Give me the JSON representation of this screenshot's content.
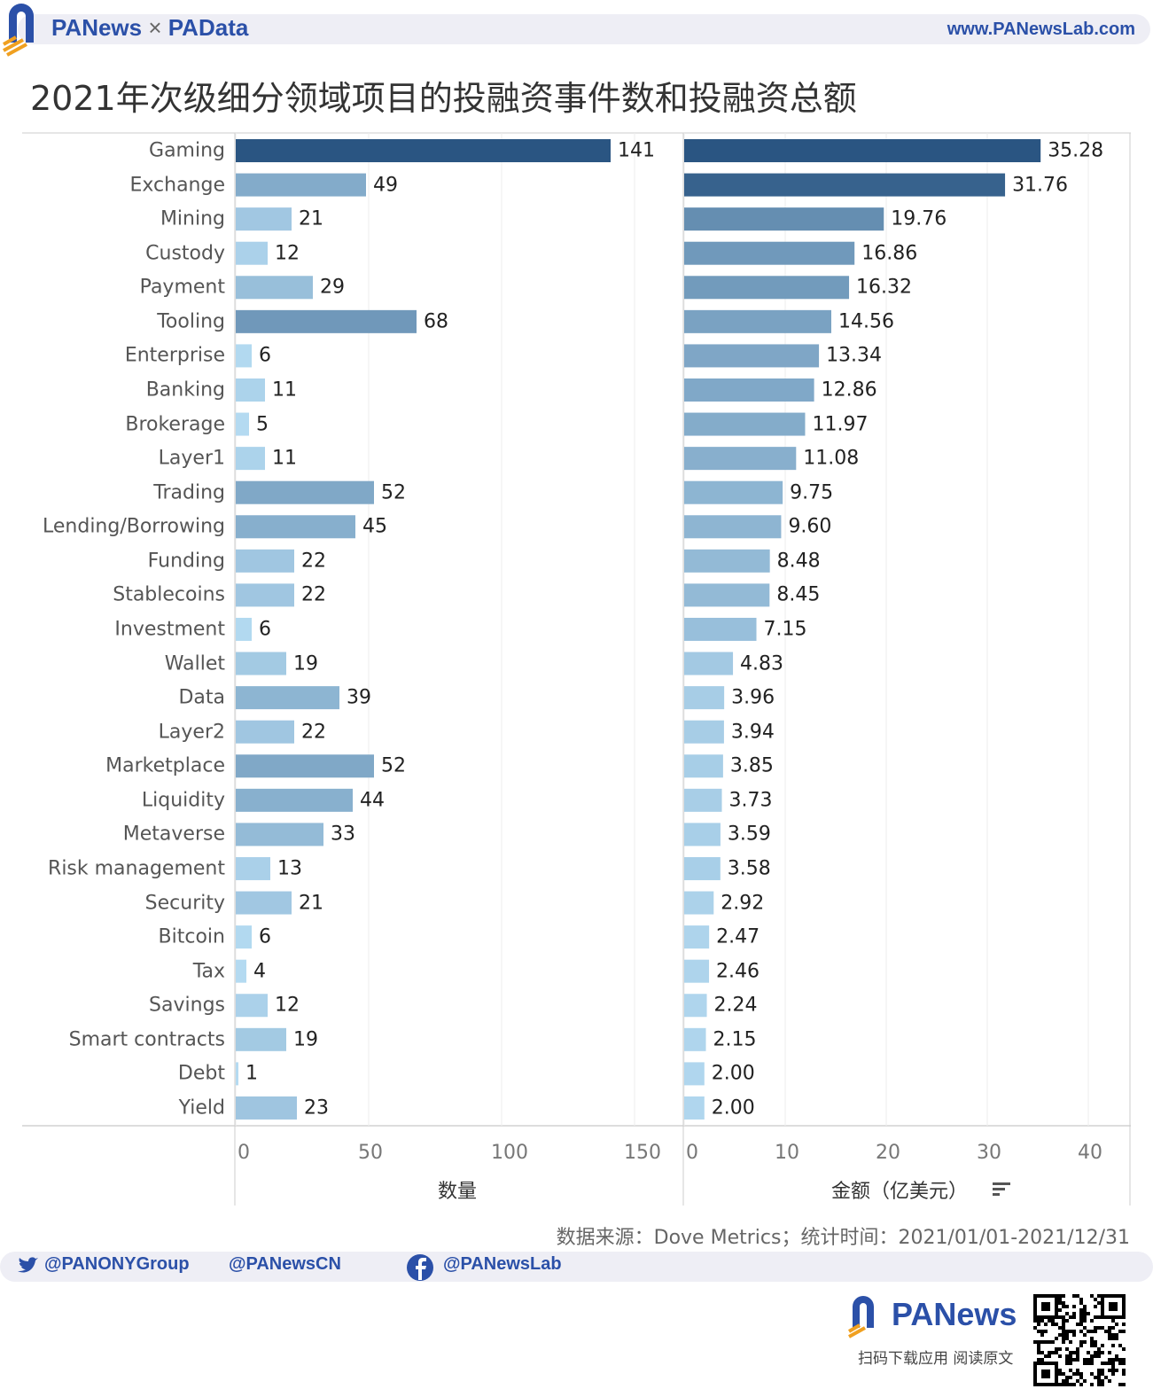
{
  "header": {
    "brand": "PANews",
    "times": "×",
    "brand2": "PAData",
    "website": "www.PANewsLab.com"
  },
  "title": "2021年次级细分领域项目的投融资事件数和投融资总额",
  "chart_data": [
    {
      "type": "bar",
      "orientation": "horizontal",
      "xlabel": "数量",
      "xlim": [
        0,
        168
      ],
      "xticks": [
        0,
        50,
        100,
        150
      ],
      "grid": true,
      "categories": [
        "Gaming",
        "Exchange",
        "Mining",
        "Custody",
        "Payment",
        "Tooling",
        "Enterprise",
        "Banking",
        "Brokerage",
        "Layer1",
        "Trading",
        "Lending/Borrowing",
        "Funding",
        "Stablecoins",
        "Investment",
        "Wallet",
        "Data",
        "Layer2",
        "Marketplace",
        "Liquidity",
        "Metaverse",
        "Risk management",
        "Security",
        "Bitcoin",
        "Tax",
        "Savings",
        "Smart contracts",
        "Debt",
        "Yield"
      ],
      "values": [
        141,
        49,
        21,
        12,
        29,
        68,
        6,
        11,
        5,
        11,
        52,
        45,
        22,
        22,
        6,
        19,
        39,
        22,
        52,
        44,
        33,
        13,
        21,
        6,
        4,
        12,
        19,
        1,
        23
      ]
    },
    {
      "type": "bar",
      "orientation": "horizontal",
      "xlabel": "金额（亿美元）",
      "xlim": [
        0,
        43
      ],
      "xticks": [
        0,
        10,
        20,
        30,
        40
      ],
      "grid": true,
      "values": [
        "35.28",
        "31.76",
        "19.76",
        "16.86",
        "16.32",
        "14.56",
        "13.34",
        "12.86",
        "11.97",
        "11.08",
        "9.75",
        "9.60",
        "8.48",
        "8.45",
        "7.15",
        "4.83",
        "3.96",
        "3.94",
        "3.85",
        "3.73",
        "3.59",
        "3.58",
        "2.92",
        "2.47",
        "2.46",
        "2.24",
        "2.15",
        "2.00",
        "2.00"
      ]
    }
  ],
  "colors": {
    "light": "#b4daf1",
    "dark": "#2a5582",
    "brand": "#2b50a8"
  },
  "footer": {
    "source": "数据来源：Dove Metrics；统计时间：2021/01/01-2021/12/31",
    "twitter1": "@PANONYGroup",
    "twitter2": "@PANewsCN",
    "facebook": "@PANewsLab",
    "logo": "PANews",
    "download": "扫码下载应用  阅读原文"
  }
}
